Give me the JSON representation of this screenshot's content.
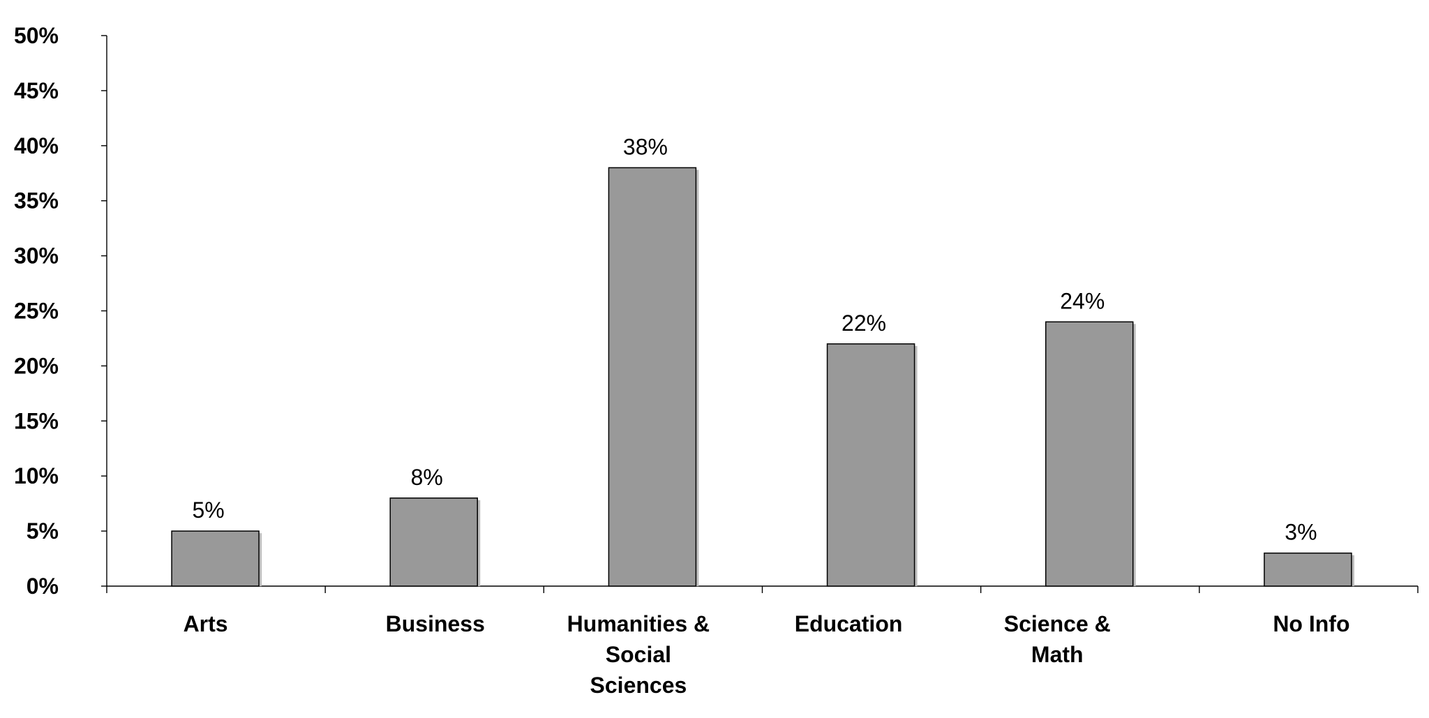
{
  "chart_data": {
    "type": "bar",
    "categories": [
      [
        "Arts"
      ],
      [
        "Business"
      ],
      [
        "Humanities &",
        "Social",
        "Sciences"
      ],
      [
        "Education"
      ],
      [
        "Science &",
        "Math"
      ],
      [
        "No Info"
      ]
    ],
    "values": [
      5,
      8,
      38,
      22,
      24,
      3
    ],
    "data_labels": [
      "5%",
      "8%",
      "38%",
      "22%",
      "24%",
      "3%"
    ],
    "title": "",
    "xlabel": "",
    "ylabel": "",
    "ylim": [
      0,
      50
    ],
    "yticks": [
      0,
      5,
      10,
      15,
      20,
      25,
      30,
      35,
      40,
      45,
      50
    ],
    "ytick_labels": [
      "0%",
      "5%",
      "10%",
      "15%",
      "20%",
      "25%",
      "30%",
      "35%",
      "40%",
      "45%",
      "50%"
    ],
    "grid": false,
    "legend": "none",
    "bar_color": "#999999"
  }
}
